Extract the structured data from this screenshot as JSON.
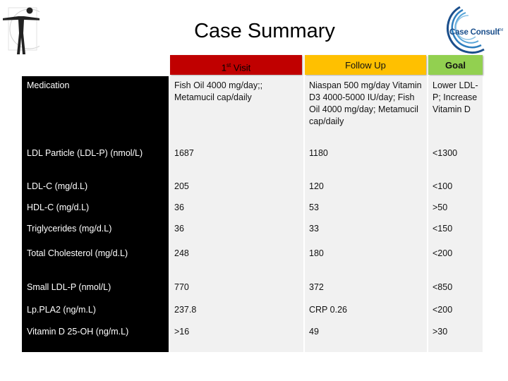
{
  "title": "Case Summary",
  "logo_text": "Case Consult",
  "logo_tm": "TM",
  "colors": {
    "first_visit_header": "#c00000",
    "follow_up_header": "#ffc000",
    "goal_header": "#92d050",
    "row_label_bg": "#000000",
    "value_bg": "#f1f1f1",
    "logo_blue": "#1b4f8c"
  },
  "table": {
    "headers": {
      "first_visit": "1st Visit",
      "first_visit_base": "1",
      "first_visit_sup": "st",
      "first_visit_rest": " Visit",
      "follow_up": "Follow Up",
      "goal": "Goal"
    },
    "rows": [
      {
        "label": "Medication",
        "first_visit": "Fish Oil 4000 mg/day;; Metamucil cap/daily",
        "follow_up": "Niaspan 500 mg/day Vitamin D3 4000-5000 IU/day; Fish Oil 4000 mg/day; Metamucil cap/daily",
        "goal": "Lower LDL-P; Increase Vitamin D"
      },
      {
        "label": "LDL Particle (LDL-P) (nmol/L)",
        "first_visit": "1687",
        "follow_up": "1180",
        "goal": "<1300"
      },
      {
        "label": "LDL-C (mg/d.L)",
        "first_visit": "205",
        "follow_up": "120",
        "goal": "<100"
      },
      {
        "label": "HDL-C (mg/d.L)",
        "first_visit": "36",
        "follow_up": "53",
        "goal": ">50"
      },
      {
        "label": "Triglycerides (mg/d.L)",
        "first_visit": "36",
        "follow_up": "33",
        "goal": "<150"
      },
      {
        "label": "Total Cholesterol (mg/d.L)",
        "first_visit": "248",
        "follow_up": "180",
        "goal": "<200"
      },
      {
        "label": "Small LDL-P (nmol/L)",
        "first_visit": "770",
        "follow_up": "372",
        "goal": "<850"
      },
      {
        "label": "Lp.PLA2 (ng/m.L)",
        "first_visit": "237.8",
        "follow_up": "CRP 0.26",
        "goal": "<200"
      },
      {
        "label": "Vitamin D 25-OH (ng/m.L)",
        "first_visit": ">16",
        "follow_up": "49",
        "goal": ">30"
      }
    ]
  }
}
